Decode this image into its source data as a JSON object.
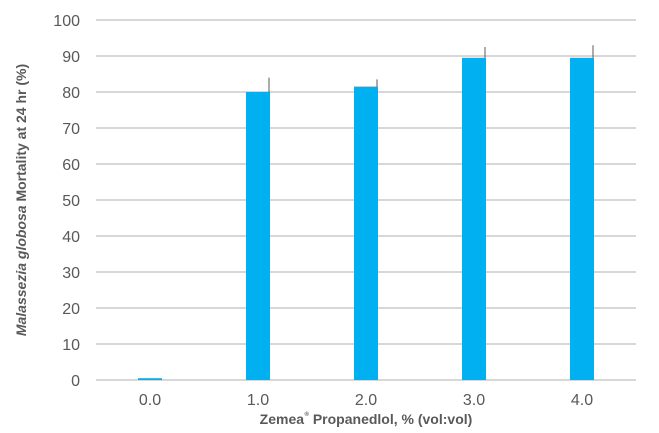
{
  "chart_data": {
    "type": "bar",
    "categories": [
      "0.0",
      "1.0",
      "2.0",
      "3.0",
      "4.0"
    ],
    "values": [
      0.5,
      80,
      81.5,
      89.5,
      89.5
    ],
    "error": [
      0,
      4,
      2,
      3,
      3.5
    ],
    "ylim": [
      0,
      100
    ],
    "yticks": [
      "0",
      "10",
      "20",
      "30",
      "40",
      "50",
      "60",
      "70",
      "80",
      "90",
      "100"
    ],
    "xlabel_part1": "Zemea",
    "xlabel_sup": "®",
    "xlabel_part2": " Propanedlol, % (vol:vol)",
    "ylabel_italic": "Malassezia globosa",
    "ylabel_rest": " Mortality at 24 hr (%)",
    "grid": true,
    "bar_color": "#00B0F0",
    "gridline_color": "#BFBFBF",
    "errorbar_color": "#595959"
  }
}
